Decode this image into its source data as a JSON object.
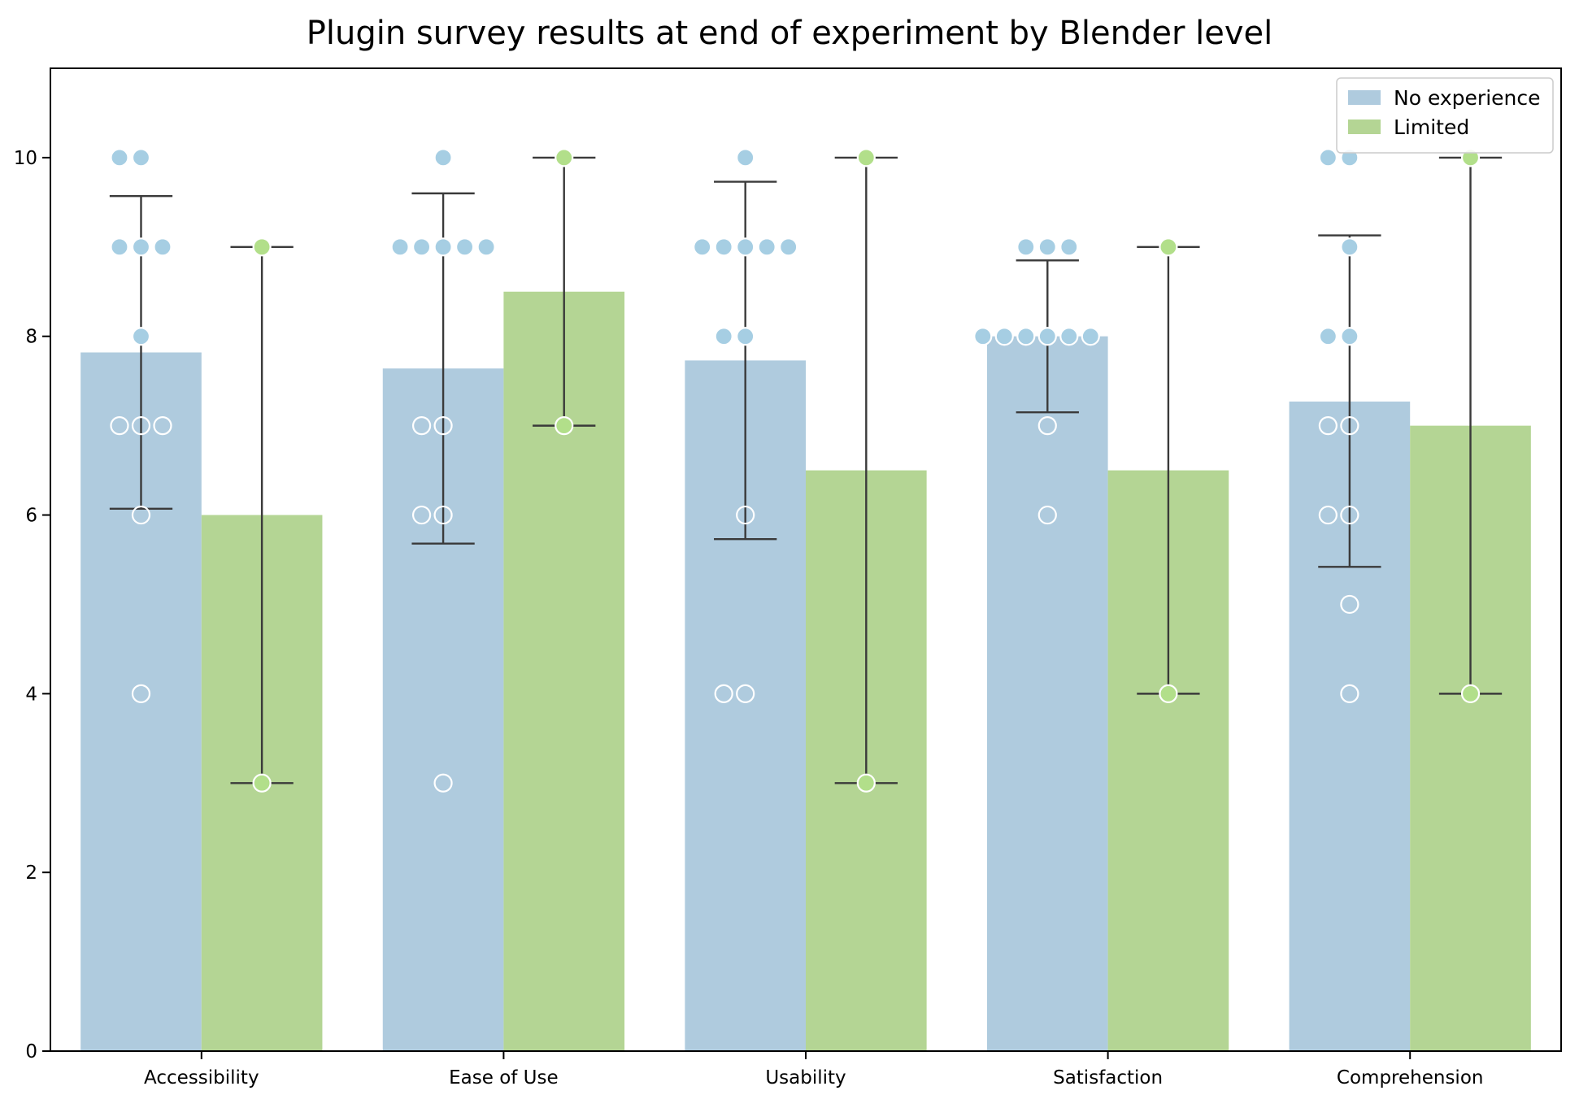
{
  "chart_data": {
    "type": "bar",
    "title": "Plugin survey results at end of experiment by Blender level",
    "xlabel": "",
    "ylabel": "",
    "ylim": [
      0,
      11
    ],
    "yticks": [
      0,
      2,
      4,
      6,
      8,
      10
    ],
    "categories": [
      "Accessibility",
      "Ease of Use",
      "Usability",
      "Satisfaction",
      "Comprehension"
    ],
    "legend": {
      "position": "top-right"
    },
    "grid": false,
    "series": [
      {
        "name": "No experience",
        "bar_color": "#afcbde",
        "point_color": "#a6cee3",
        "values": [
          7.82,
          7.64,
          7.73,
          8.0,
          7.27
        ],
        "error_low": [
          6.07,
          5.68,
          5.73,
          7.15,
          5.42
        ],
        "error_high": [
          9.57,
          9.6,
          9.73,
          8.85,
          9.13
        ],
        "points": [
          [
            10,
            10,
            9,
            9,
            9,
            8,
            7,
            7,
            7,
            6,
            4
          ],
          [
            10,
            9,
            9,
            9,
            9,
            9,
            7,
            7,
            6,
            6,
            3
          ],
          [
            10,
            9,
            9,
            9,
            9,
            9,
            8,
            8,
            6,
            4,
            4
          ],
          [
            9,
            9,
            9,
            8,
            8,
            8,
            8,
            8,
            8,
            7,
            6
          ],
          [
            10,
            10,
            9,
            8,
            8,
            7,
            7,
            6,
            6,
            5,
            4
          ]
        ]
      },
      {
        "name": "Limited",
        "bar_color": "#b4d594",
        "point_color": "#b2df8a",
        "values": [
          6.0,
          8.5,
          6.5,
          6.5,
          7.0
        ],
        "error_low": [
          3,
          7,
          3,
          4,
          4
        ],
        "error_high": [
          9,
          10,
          10,
          9,
          10
        ],
        "points": [
          [
            9,
            3
          ],
          [
            10,
            7
          ],
          [
            10,
            3
          ],
          [
            9,
            4
          ],
          [
            10,
            4
          ]
        ]
      }
    ],
    "hollow_point_threshold": 7.5,
    "errorbar_color": "#3a3a3a"
  }
}
